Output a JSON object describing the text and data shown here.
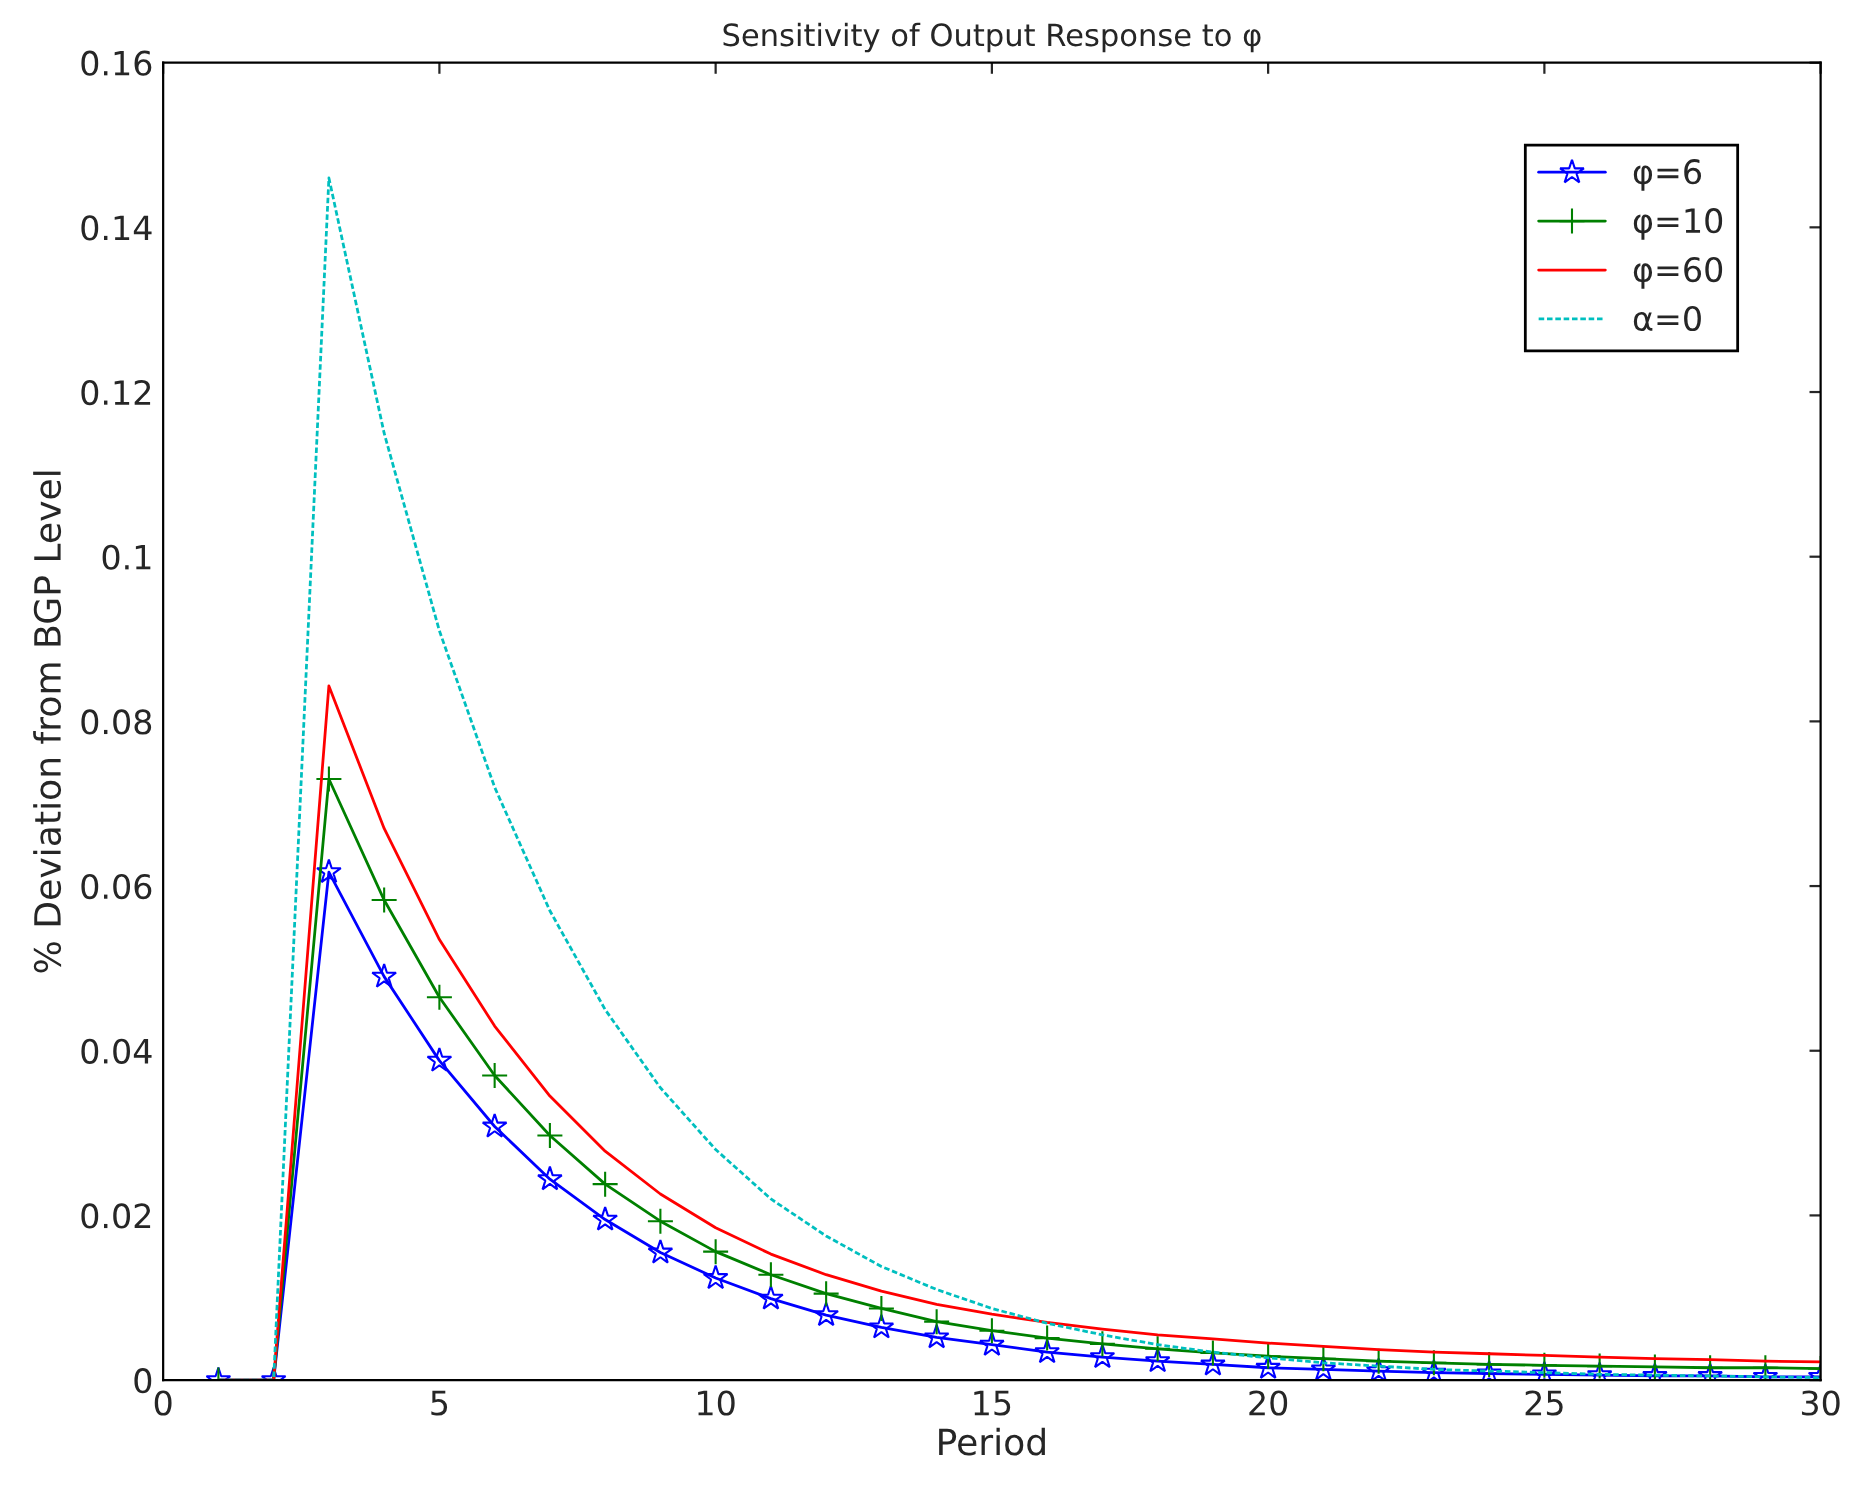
{
  "chart_data": {
    "type": "line",
    "title": "Sensitivity of Output Response to φ",
    "xlabel": "Period",
    "ylabel": "% Deviation from BGP Level",
    "x": [
      1,
      2,
      3,
      4,
      5,
      6,
      7,
      8,
      9,
      10,
      11,
      12,
      13,
      14,
      15,
      16,
      17,
      18,
      19,
      20,
      21,
      22,
      23,
      24,
      25,
      26,
      27,
      28,
      29,
      30
    ],
    "series": [
      {
        "name": "φ=6",
        "color": "#0000ff",
        "marker": "star",
        "line_style": "solid",
        "values": [
          0,
          0,
          0.0617,
          0.049,
          0.0388,
          0.0308,
          0.0244,
          0.0195,
          0.0155,
          0.0124,
          0.0099,
          0.0079,
          0.0064,
          0.0052,
          0.0043,
          0.0034,
          0.0028,
          0.0023,
          0.0019,
          0.0015,
          0.0013,
          0.0011,
          0.0009,
          0.0008,
          0.0007,
          0.0006,
          0.0005,
          0.0005,
          0.0004,
          0.0004
        ]
      },
      {
        "name": "φ=10",
        "color": "#008000",
        "marker": "cross",
        "line_style": "solid",
        "values": [
          0,
          0,
          0.073,
          0.0583,
          0.0465,
          0.037,
          0.0297,
          0.0238,
          0.0193,
          0.0156,
          0.0128,
          0.0105,
          0.0087,
          0.0071,
          0.006,
          0.0051,
          0.0044,
          0.0038,
          0.0033,
          0.0029,
          0.0026,
          0.0023,
          0.0021,
          0.0019,
          0.0018,
          0.0017,
          0.0016,
          0.0015,
          0.0015,
          0.0014
        ]
      },
      {
        "name": "φ=60",
        "color": "#ff0000",
        "marker": "none",
        "line_style": "solid",
        "values": [
          0,
          0,
          0.0843,
          0.067,
          0.0535,
          0.043,
          0.0345,
          0.0278,
          0.0226,
          0.0185,
          0.0153,
          0.0128,
          0.0108,
          0.0092,
          0.008,
          0.007,
          0.0062,
          0.0055,
          0.005,
          0.0045,
          0.0041,
          0.0037,
          0.0034,
          0.0032,
          0.003,
          0.0028,
          0.0026,
          0.0025,
          0.0023,
          0.0022
        ]
      },
      {
        "name": "α=0",
        "color": "#00bfbf",
        "marker": "none",
        "line_style": "dashed",
        "values": [
          0,
          0,
          0.146,
          0.115,
          0.091,
          0.072,
          0.057,
          0.045,
          0.0355,
          0.028,
          0.022,
          0.0175,
          0.0138,
          0.011,
          0.0087,
          0.0069,
          0.0055,
          0.0043,
          0.0034,
          0.0027,
          0.0021,
          0.0017,
          0.0013,
          0.0011,
          0.0009,
          0.0007,
          0.0006,
          0.0005,
          0.0004,
          0.0003
        ]
      }
    ],
    "xlim": [
      0,
      30
    ],
    "xticks": [
      0,
      5,
      10,
      15,
      20,
      25,
      30
    ],
    "ylim": [
      0,
      0.16
    ],
    "yticks": [
      0,
      0.02,
      0.04,
      0.06,
      0.08,
      0.1,
      0.12,
      0.14,
      0.16
    ],
    "grid": false,
    "legend": "top right"
  }
}
